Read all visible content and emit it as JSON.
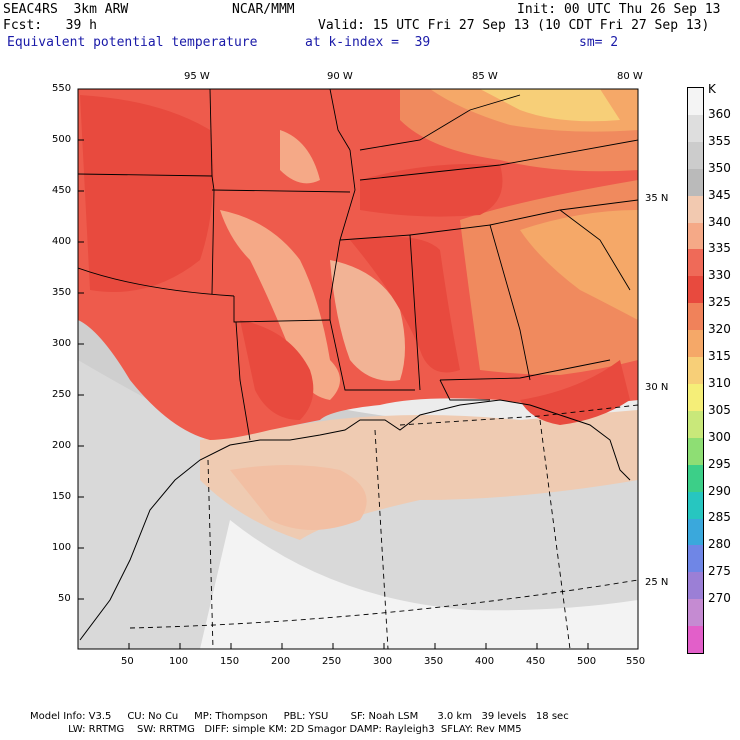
{
  "header": {
    "model": "SEAC4RS  3km ARW",
    "org": "NCAR/MMM",
    "init": "Init: 00 UTC Thu 26 Sep 13",
    "fcst": "Fcst:   39 h",
    "valid": "Valid: 15 UTC Fri 27 Sep 13 (10 CDT Fri 27 Sep 13)",
    "field": "Equivalent potential temperature",
    "level": "at k-index =  39",
    "smooth": "sm= 2"
  },
  "top_lon_labels": [
    "95 W",
    "90 W",
    "85 W",
    "80 W"
  ],
  "right_lat_labels": [
    "35 N",
    "30 N",
    "25 N"
  ],
  "y_ticks": [
    "550",
    "500",
    "450",
    "400",
    "350",
    "300",
    "250",
    "200",
    "150",
    "100",
    "50"
  ],
  "x_ticks": [
    "50",
    "100",
    "150",
    "200",
    "250",
    "300",
    "350",
    "400",
    "450",
    "500",
    "550"
  ],
  "colorbar": {
    "unit": "K",
    "levels": [
      "360",
      "355",
      "350",
      "345",
      "340",
      "335",
      "330",
      "325",
      "320",
      "315",
      "310",
      "305",
      "300",
      "295",
      "290",
      "285",
      "280",
      "275",
      "270"
    ],
    "colors": [
      "#f4f4f4",
      "#dedede",
      "#cccccc",
      "#bababa",
      "#f2c9b0",
      "#f5a987",
      "#ef6a58",
      "#e84a3e",
      "#f0825a",
      "#f5a868",
      "#f7cf78",
      "#f5ee78",
      "#c9e87a",
      "#8ede74",
      "#3ccf88",
      "#27c6c0",
      "#3aa8dc",
      "#6f86e6",
      "#9b7fd6",
      "#c58bd2",
      "#e25fc9"
    ]
  },
  "footer": {
    "line1": "Model Info: V3.5     CU: No Cu     MP: Thompson     PBL: YSU       SF: Noah LSM      3.0 km   39 levels   18 sec",
    "line2": "            LW: RRTMG    SW: RRTMG   DIFF: simple KM: 2D Smagor DAMP: Rayleigh3  SFLAY: Rev MM5"
  }
}
